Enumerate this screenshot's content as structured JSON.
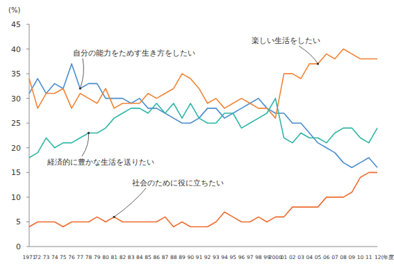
{
  "chart_data": {
    "type": "line",
    "ylabel": "(%)",
    "categories": [
      "1971",
      "72",
      "73",
      "74",
      "75",
      "76",
      "77",
      "78",
      "79",
      "80",
      "81",
      "82",
      "83",
      "84",
      "85",
      "86",
      "87",
      "88",
      "89",
      "90",
      "91",
      "92",
      "93",
      "94",
      "95",
      "96",
      "97",
      "98",
      "99",
      "2000",
      "01",
      "02",
      "03",
      "04",
      "05",
      "06",
      "07",
      "08",
      "09",
      "10",
      "11",
      "12(年度)"
    ],
    "ylim": [
      0,
      45
    ],
    "yticks": [
      0,
      5,
      10,
      15,
      20,
      25,
      30,
      35,
      40,
      45
    ],
    "grid": false,
    "series": [
      {
        "name": "自分の能力をためす生き方をしたい",
        "color": "#4a8ccc",
        "values": [
          31,
          34,
          31,
          33,
          32,
          37,
          32,
          33,
          33,
          30,
          30,
          30,
          29,
          30,
          28,
          28,
          27,
          26,
          25,
          25,
          26,
          28,
          28,
          26,
          27,
          28,
          29,
          30,
          28,
          27,
          27,
          25,
          25,
          23,
          21,
          20,
          19,
          17,
          16,
          17,
          18,
          16
        ]
      },
      {
        "name": "楽しい生活をしたい",
        "color": "#f28334",
        "values": [
          34,
          28,
          31,
          31,
          32,
          28,
          31,
          30,
          29,
          32,
          28,
          29,
          29,
          29,
          31,
          30,
          31,
          32,
          35,
          34,
          32,
          29,
          30,
          28,
          29,
          30,
          29,
          28,
          28,
          26,
          35,
          35,
          34,
          37,
          37,
          39,
          38,
          40,
          39,
          38,
          38,
          38
        ]
      },
      {
        "name": "経済的に豊かな生活を送りたい",
        "color": "#2bb5a5",
        "values": [
          18,
          19,
          22,
          20,
          21,
          21,
          22,
          23,
          23,
          24,
          26,
          27,
          28,
          28,
          27,
          29,
          27,
          29,
          26,
          29,
          26,
          25,
          25,
          27,
          27,
          24,
          25,
          26,
          27,
          30,
          22,
          21,
          23,
          22,
          22,
          21,
          23,
          24,
          24,
          22,
          21,
          24
        ]
      },
      {
        "name": "社会のために役に立ちたい",
        "color": "#ee6b2e",
        "values": [
          4,
          5,
          5,
          5,
          4,
          5,
          5,
          5,
          6,
          5,
          6,
          5,
          5,
          5,
          5,
          5,
          6,
          4,
          5,
          4,
          4,
          4,
          5,
          7,
          6,
          5,
          5,
          6,
          5,
          6,
          6,
          8,
          8,
          8,
          8,
          10,
          10,
          10,
          11,
          14,
          15,
          15
        ]
      }
    ]
  }
}
